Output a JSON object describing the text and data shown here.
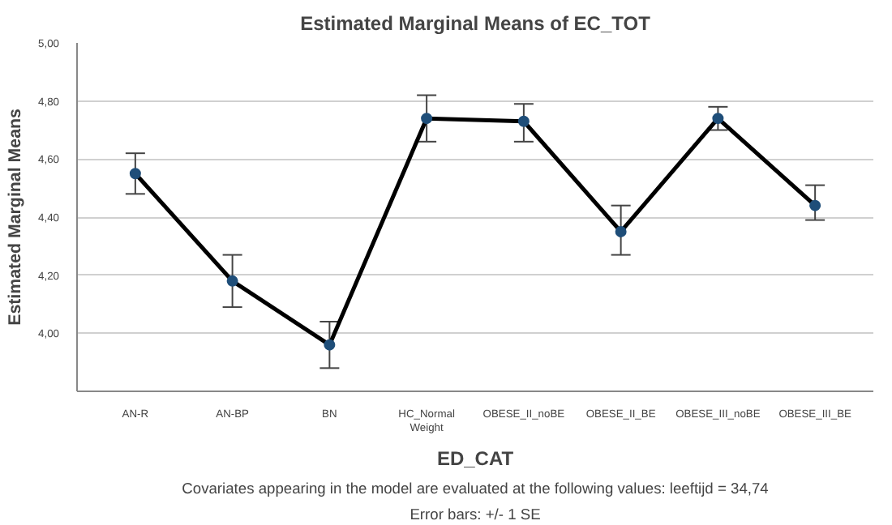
{
  "chart_data": {
    "type": "line",
    "title": "Estimated Marginal Means of EC_TOT",
    "xlabel": "ED_CAT",
    "ylabel": "Estimated Marginal Means",
    "categories": [
      "AN-R",
      "AN-BP",
      "BN",
      "HC_Normal Weight",
      "OBESE_II_noBE",
      "OBESE_II_BE",
      "OBESE_III_noBE",
      "OBESE_III_BE"
    ],
    "series": [
      {
        "color": "#000000",
        "values": [
          4.55,
          4.18,
          3.96,
          4.74,
          4.73,
          4.35,
          4.74,
          4.44
        ],
        "errors": [
          [
            4.48,
            4.62
          ],
          [
            4.09,
            4.27
          ],
          [
            3.88,
            4.04
          ],
          [
            4.66,
            4.82
          ],
          [
            4.66,
            4.79
          ],
          [
            4.27,
            4.44
          ],
          [
            4.7,
            4.78
          ],
          [
            4.39,
            4.51
          ]
        ]
      }
    ],
    "marker": "circle",
    "grid": "y",
    "ylim": [
      3.8,
      5.0
    ],
    "yticks": [
      {
        "value": 4.0,
        "label": "4,00"
      },
      {
        "value": 4.2,
        "label": "4,20"
      },
      {
        "value": 4.4,
        "label": "4,40"
      },
      {
        "value": 4.6,
        "label": "4,60"
      },
      {
        "value": 4.8,
        "label": "4,80"
      },
      {
        "value": 5.0,
        "label": "5,00"
      }
    ],
    "annotations": [
      "Covariates appearing in the model are evaluated at the following values: leeftijd = 34,74",
      "Error bars: +/- 1 SE"
    ]
  }
}
